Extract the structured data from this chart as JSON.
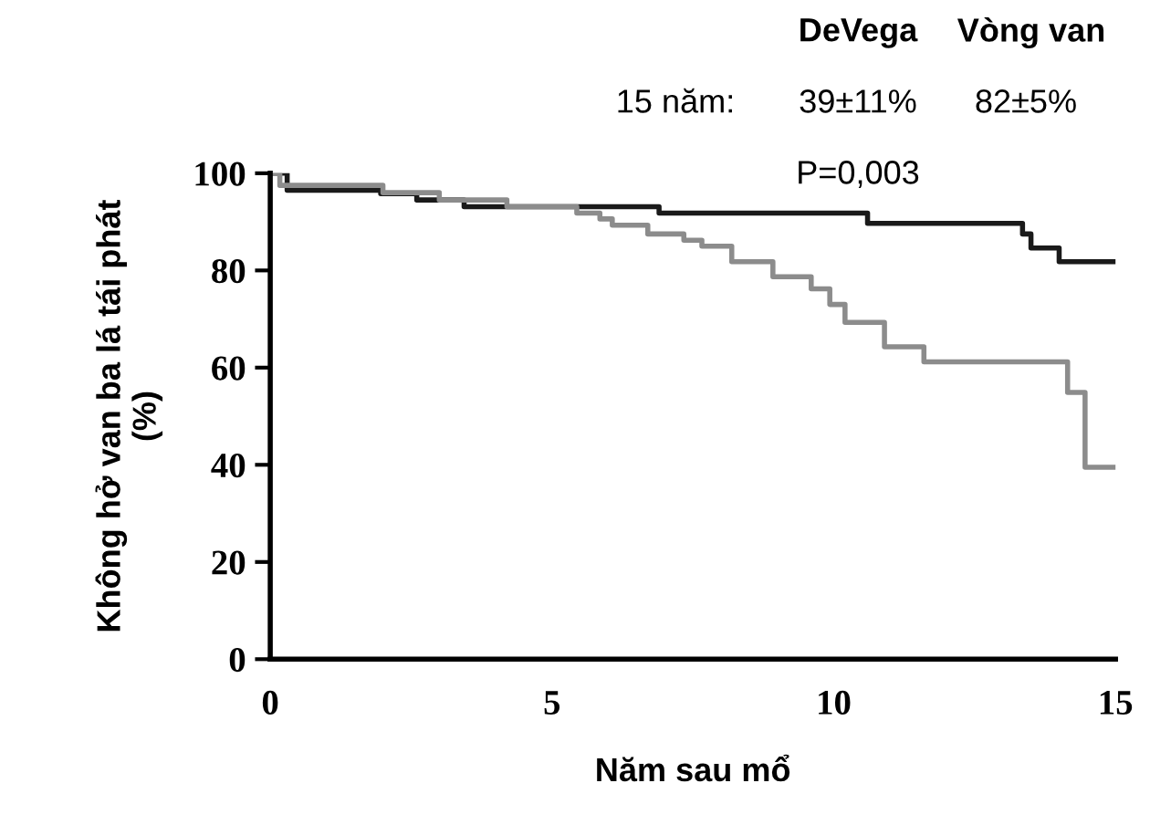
{
  "chart_data": {
    "type": "step",
    "xlabel": "Năm sau mổ",
    "ylabel": "Không hở van ba lá tái phát\n(%)",
    "xlim": [
      0,
      15
    ],
    "ylim": [
      0,
      100
    ],
    "xticks": [
      0,
      5,
      10,
      15
    ],
    "yticks": [
      0,
      20,
      40,
      60,
      80,
      100
    ],
    "grid": false,
    "legend": false,
    "series": [
      {
        "color": "#1a1a1a",
        "x": [
          0,
          0.3,
          1.96,
          2.6,
          3.44,
          6.9,
          10.6,
          13.35,
          13.5,
          14.0,
          15.0
        ],
        "values": [
          100,
          96.5,
          95.8,
          94.5,
          93.1,
          91.8,
          89.7,
          87.5,
          84.6,
          81.8,
          81.8
        ]
      },
      {
        "color": "#8c8c8c",
        "x": [
          0,
          0.17,
          2.0,
          3.0,
          4.2,
          5.44,
          5.85,
          6.07,
          6.7,
          7.34,
          7.66,
          8.19,
          8.92,
          9.6,
          9.93,
          10.2,
          10.9,
          11.6,
          14.15,
          14.46,
          15.0
        ],
        "values": [
          100,
          97.5,
          96,
          94.5,
          93.1,
          91.8,
          90.6,
          89.3,
          87.5,
          86.2,
          85,
          81.8,
          78.7,
          76.2,
          73,
          69.3,
          64.3,
          61.2,
          54.9,
          39.5,
          39.5
        ]
      }
    ],
    "annotations": [
      "DeVega",
      "Vòng van",
      "15 năm:",
      "39±11%",
      "82±5%",
      "P=0,003"
    ]
  }
}
